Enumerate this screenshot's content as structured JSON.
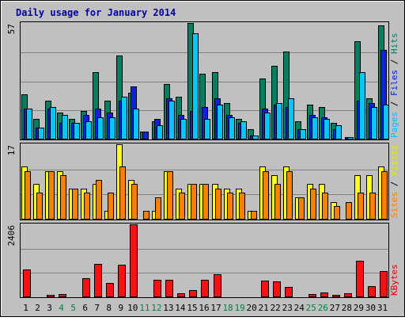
{
  "chart_data": {
    "type": "bar",
    "title": "Daily usage for January 2014",
    "categories": [
      "1",
      "2",
      "3",
      "4",
      "5",
      "6",
      "7",
      "8",
      "9",
      "10",
      "11",
      "12",
      "13",
      "14",
      "15",
      "16",
      "17",
      "18",
      "19",
      "20",
      "21",
      "22",
      "23",
      "24",
      "25",
      "26",
      "27",
      "28",
      "29",
      "30",
      "31"
    ],
    "weekend_days": [
      "4",
      "5",
      "11",
      "12",
      "18",
      "19",
      "25",
      "26"
    ],
    "panels": [
      {
        "id": "hits",
        "max_label": "57",
        "ylim": [
          0,
          57
        ],
        "axis_labels": [
          {
            "text": "Pages",
            "color": "#00c0ff"
          },
          {
            "text": "Files",
            "color": "#0020e0"
          },
          {
            "text": "Hits",
            "color": "#00806a"
          }
        ],
        "series": [
          {
            "name": "Hits",
            "color": "#008060",
            "values": [
              22,
              10,
              19,
              13,
              10,
              14,
              33,
              19,
              41,
              23,
              4,
              9,
              27,
              21,
              57,
              32,
              33,
              18,
              10,
              5,
              30,
              36,
              43,
              9,
              17,
              16,
              8,
              0,
              48,
              20,
              56
            ]
          },
          {
            "name": "Files",
            "color": "#1020e0",
            "values": [
              15,
              6,
              15,
              8,
              8,
              12,
              15,
              13,
              19,
              26,
              4,
              10,
              20,
              12,
              14,
              16,
              20,
              12,
              8,
              2,
              15,
              17,
              16,
              5,
              12,
              11,
              5,
              1,
              19,
              18,
              44
            ]
          },
          {
            "name": "Pages",
            "color": "#00c8ff",
            "values": [
              15,
              6,
              16,
              12,
              8,
              9,
              11,
              11,
              21,
              15,
              0,
              7,
              19,
              10,
              52,
              10,
              17,
              11,
              9,
              2,
              13,
              18,
              20,
              5,
              11,
              10,
              7,
              1,
              33,
              16,
              17
            ]
          }
        ]
      },
      {
        "id": "visits",
        "max_label": "17",
        "ylim": [
          0,
          17
        ],
        "axis_labels": [
          {
            "text": "Sites",
            "color": "#ff8000"
          },
          {
            "text": "Visits",
            "color": "#e8e800"
          }
        ],
        "series": [
          {
            "name": "Visits",
            "color": "#ffff20",
            "values": [
              12,
              8,
              11,
              11,
              7,
              7,
              8,
              2,
              17,
              9,
              0,
              2,
              11,
              7,
              8,
              8,
              8,
              7,
              7,
              2,
              12,
              10,
              12,
              5,
              8,
              8,
              4,
              0,
              10,
              10,
              12
            ]
          },
          {
            "name": "Sites",
            "color": "#ff8000",
            "values": [
              11,
              6,
              11,
              10,
              7,
              6,
              9,
              6,
              12,
              8,
              2,
              5,
              11,
              6,
              8,
              8,
              7,
              6,
              6,
              2,
              11,
              8,
              11,
              5,
              7,
              6,
              3,
              4,
              6,
              6,
              11
            ]
          }
        ]
      },
      {
        "id": "kbytes",
        "max_label": "2406",
        "ylim": [
          0,
          2406
        ],
        "axis_labels": [
          {
            "text": "KBytes",
            "color": "#e00000"
          }
        ],
        "series": [
          {
            "name": "KBytes",
            "color": "#ff1010",
            "values": [
              920,
              30,
              80,
              110,
              0,
              630,
              1090,
              460,
              1080,
              2406,
              20,
              580,
              570,
              130,
              240,
              570,
              750,
              0,
              0,
              0,
              560,
              530,
              350,
              0,
              100,
              160,
              70,
              120,
              1190,
              370,
              850
            ]
          }
        ]
      }
    ]
  }
}
